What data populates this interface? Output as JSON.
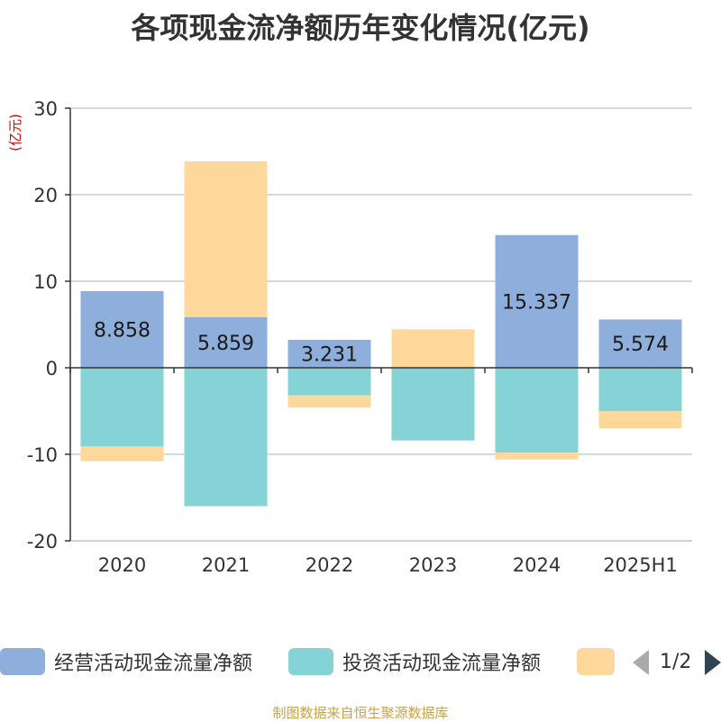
{
  "title": "各项现金流净额历年变化情况(亿元)",
  "footer": "制图数据来自恒生聚源数据库",
  "legend": {
    "items": [
      {
        "label": "经营活动现金流量净额",
        "color": "#8eaedb"
      },
      {
        "label": "投资活动现金流量净额",
        "color": "#85d3d6"
      },
      {
        "label": "",
        "color": "#fdd89a"
      }
    ],
    "page": "1/2"
  },
  "chart_data": {
    "type": "bar",
    "stacked": true,
    "categories": [
      "2020",
      "2021",
      "2022",
      "2023",
      "2024",
      "2025H1"
    ],
    "ylabel": "(亿元)",
    "ylim": [
      -20,
      30
    ],
    "yticks": [
      30,
      20,
      10,
      0,
      -10,
      -20
    ],
    "grid": true,
    "legend_position": "bottom",
    "series": [
      {
        "name": "经营活动现金流量净额",
        "color": "#8eaedb",
        "values": [
          8.858,
          5.859,
          3.231,
          0.05,
          15.337,
          5.574
        ],
        "labels": [
          "8.858",
          "5.859",
          "3.231",
          "",
          "15.337",
          "5.574"
        ]
      },
      {
        "name": "投资活动现金流量净额",
        "color": "#85d3d6",
        "values": [
          -9.1,
          -16.0,
          -3.2,
          -8.4,
          -9.8,
          -5.0
        ]
      },
      {
        "color": "#fdd89a",
        "values": [
          -1.7,
          18.0,
          -1.4,
          4.4,
          -0.8,
          -2.0
        ]
      }
    ]
  }
}
